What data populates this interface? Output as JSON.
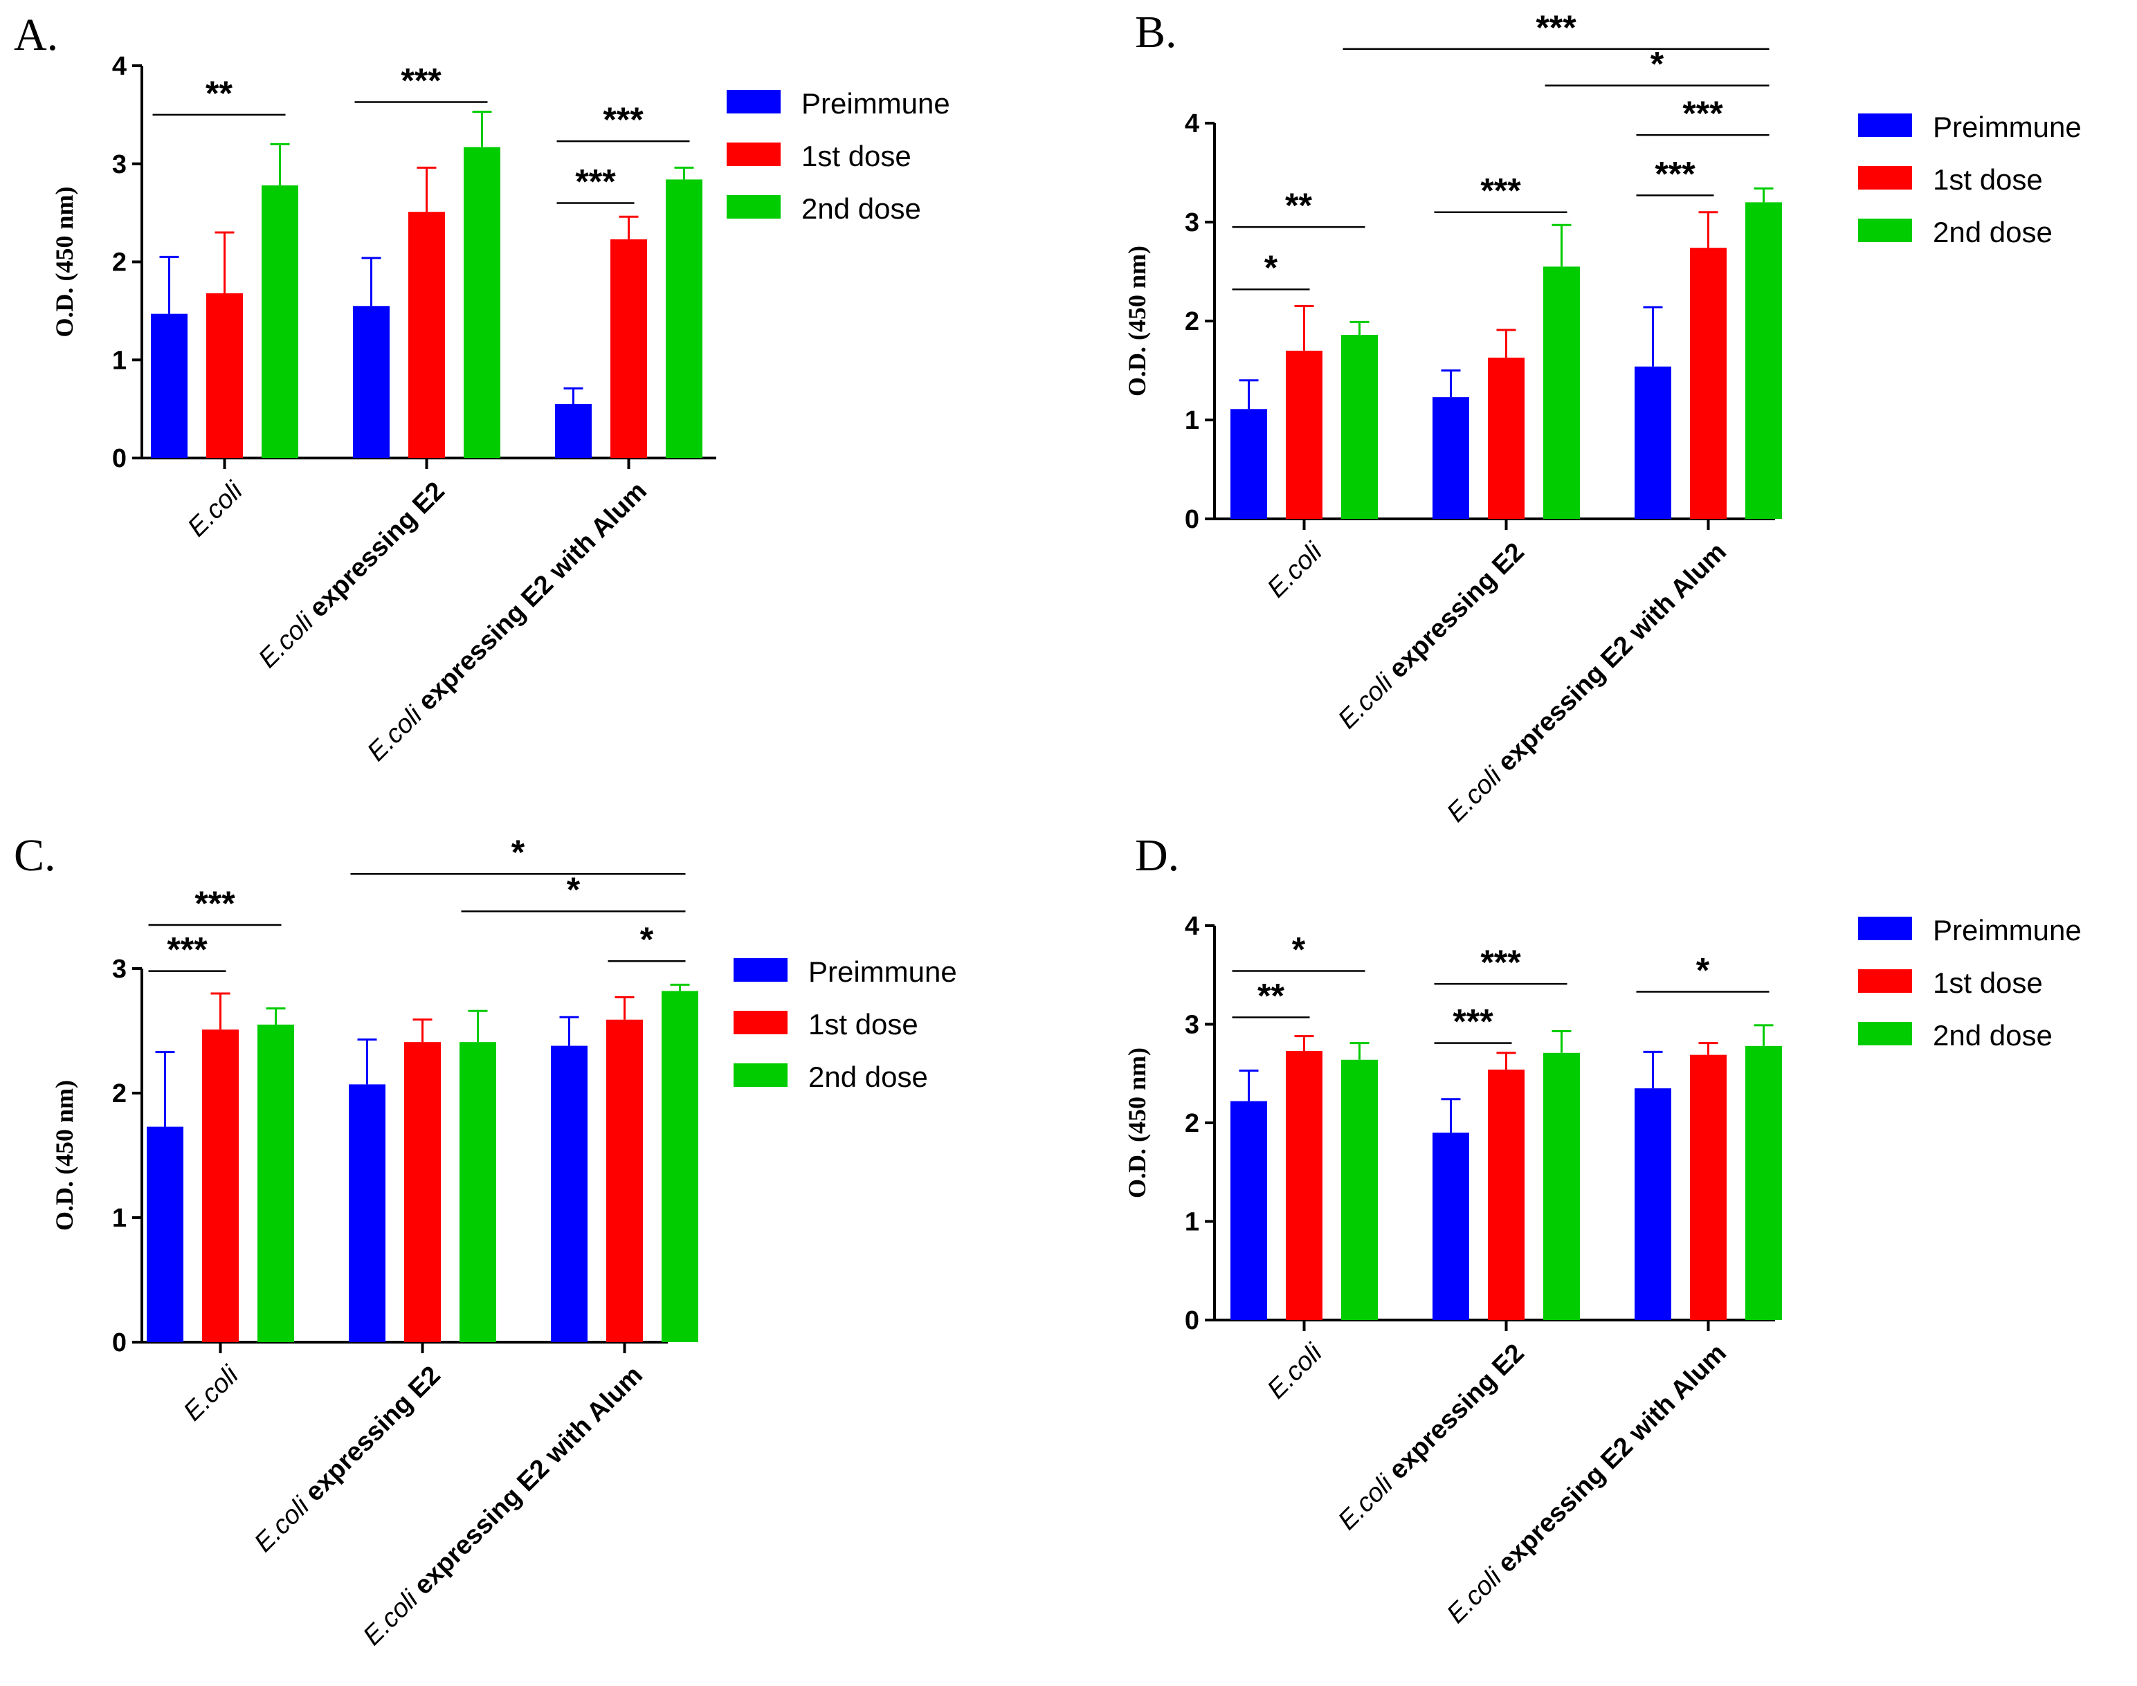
{
  "colors": {
    "Preimmune": "#0000ff",
    "1st dose": "#ff0000",
    "2nd dose": "#00cc00",
    "axis": "#000000"
  },
  "chart_data": [
    {
      "panel_label": "A.",
      "type": "bar",
      "ylabel": "O.D. (450 nm)",
      "ylim": [
        0,
        4
      ],
      "yticks": [
        0,
        1,
        2,
        3,
        4
      ],
      "categories": [
        {
          "italic": "E.coli",
          "bold": ""
        },
        {
          "italic": "E.coli",
          "bold": " expressing E2"
        },
        {
          "italic": "E.coli",
          "bold": " expressing E2 with Alum"
        }
      ],
      "series": [
        {
          "name": "Preimmune",
          "values": [
            1.47,
            1.55,
            0.55
          ],
          "errors": [
            0.58,
            0.49,
            0.16
          ]
        },
        {
          "name": "1st dose",
          "values": [
            1.68,
            2.51,
            2.23
          ],
          "errors": [
            0.62,
            0.45,
            0.23
          ]
        },
        {
          "name": "2nd dose",
          "values": [
            2.78,
            3.17,
            2.84
          ],
          "errors": [
            0.42,
            0.36,
            0.12
          ]
        }
      ],
      "legend": [
        "Preimmune",
        "1st dose",
        "2nd dose"
      ],
      "significance": [
        {
          "label": "**",
          "from": [
            0,
            0
          ],
          "to": [
            0,
            2
          ],
          "y": 3.5
        },
        {
          "label": "***",
          "from": [
            1,
            0
          ],
          "to": [
            1,
            2
          ],
          "y": 3.63
        },
        {
          "label": "***",
          "from": [
            2,
            0
          ],
          "to": [
            2,
            2
          ],
          "y": 3.23
        },
        {
          "label": "***",
          "from": [
            2,
            0
          ],
          "to": [
            2,
            1
          ],
          "y": 2.6
        }
      ]
    },
    {
      "panel_label": "B.",
      "type": "bar",
      "ylabel": "O.D. (450 nm)",
      "ylim": [
        0,
        4
      ],
      "yticks": [
        0,
        1,
        2,
        3,
        4
      ],
      "categories": [
        {
          "italic": "E.coli",
          "bold": ""
        },
        {
          "italic": "E.coli",
          "bold": " expressing E2"
        },
        {
          "italic": "E.coli",
          "bold": " expressing E2 with Alum"
        }
      ],
      "series": [
        {
          "name": "Preimmune",
          "values": [
            1.11,
            1.23,
            1.54
          ],
          "errors": [
            0.29,
            0.27,
            0.6
          ]
        },
        {
          "name": "1st dose",
          "values": [
            1.7,
            1.63,
            2.74
          ],
          "errors": [
            0.45,
            0.28,
            0.36
          ]
        },
        {
          "name": "2nd dose",
          "values": [
            1.86,
            2.55,
            3.2
          ],
          "errors": [
            0.13,
            0.42,
            0.14
          ]
        }
      ],
      "legend": [
        "Preimmune",
        "1st dose",
        "2nd dose"
      ],
      "significance": [
        {
          "label": "***",
          "from": [
            0,
            2
          ],
          "to": [
            2,
            2
          ],
          "y": 4.75
        },
        {
          "label": "*",
          "from": [
            1,
            2
          ],
          "to": [
            2,
            2
          ],
          "y": 4.38
        },
        {
          "label": "***",
          "from": [
            2,
            0
          ],
          "to": [
            2,
            2
          ],
          "y": 3.88
        },
        {
          "label": "***",
          "from": [
            2,
            0
          ],
          "to": [
            2,
            1
          ],
          "y": 3.27
        },
        {
          "label": "***",
          "from": [
            1,
            0
          ],
          "to": [
            1,
            2
          ],
          "y": 3.1
        },
        {
          "label": "**",
          "from": [
            0,
            0
          ],
          "to": [
            0,
            2
          ],
          "y": 2.95
        },
        {
          "label": "*",
          "from": [
            0,
            0
          ],
          "to": [
            0,
            1
          ],
          "y": 2.32
        }
      ]
    },
    {
      "panel_label": "C.",
      "type": "bar",
      "ylabel": "O.D. (450 nm)",
      "ylim": [
        0,
        3
      ],
      "yticks": [
        0,
        1,
        2,
        3
      ],
      "categories": [
        {
          "italic": "E.coli",
          "bold": ""
        },
        {
          "italic": "E.coli",
          "bold": " expressing E2"
        },
        {
          "italic": "E.coli",
          "bold": " expressing E2 with Alum"
        }
      ],
      "series": [
        {
          "name": "Preimmune",
          "values": [
            1.73,
            2.07,
            2.38
          ],
          "errors": [
            0.6,
            0.36,
            0.23
          ]
        },
        {
          "name": "1st dose",
          "values": [
            2.51,
            2.41,
            2.59
          ],
          "errors": [
            0.29,
            0.18,
            0.18
          ]
        },
        {
          "name": "2nd dose",
          "values": [
            2.55,
            2.41,
            2.82
          ],
          "errors": [
            0.13,
            0.25,
            0.05
          ]
        }
      ],
      "legend": [
        "Preimmune",
        "1st dose",
        "2nd dose"
      ],
      "significance": [
        {
          "label": "*",
          "from": [
            1,
            0
          ],
          "to": [
            2,
            2
          ],
          "y": 3.76
        },
        {
          "label": "*",
          "from": [
            1,
            2
          ],
          "to": [
            2,
            2
          ],
          "y": 3.46
        },
        {
          "label": "*",
          "from": [
            2,
            1
          ],
          "to": [
            2,
            2
          ],
          "y": 3.06
        },
        {
          "label": "***",
          "from": [
            0,
            0
          ],
          "to": [
            0,
            2
          ],
          "y": 3.35
        },
        {
          "label": "***",
          "from": [
            0,
            0
          ],
          "to": [
            0,
            1
          ],
          "y": 2.98
        }
      ]
    },
    {
      "panel_label": "D.",
      "type": "bar",
      "ylabel": "O.D. (450 nm)",
      "ylim": [
        0,
        4
      ],
      "yticks": [
        0,
        1,
        2,
        3,
        4
      ],
      "categories": [
        {
          "italic": "E.coli",
          "bold": ""
        },
        {
          "italic": "E.coli",
          "bold": " expressing E2"
        },
        {
          "italic": "E.coli",
          "bold": " expressing E2 with Alum"
        }
      ],
      "series": [
        {
          "name": "Preimmune",
          "values": [
            2.22,
            1.9,
            2.35
          ],
          "errors": [
            0.31,
            0.34,
            0.37
          ]
        },
        {
          "name": "1st dose",
          "values": [
            2.73,
            2.54,
            2.69
          ],
          "errors": [
            0.15,
            0.17,
            0.12
          ]
        },
        {
          "name": "2nd dose",
          "values": [
            2.64,
            2.71,
            2.78
          ],
          "errors": [
            0.17,
            0.22,
            0.21
          ]
        }
      ],
      "legend": [
        "Preimmune",
        "1st dose",
        "2nd dose"
      ],
      "significance": [
        {
          "label": "*",
          "from": [
            0,
            0
          ],
          "to": [
            0,
            2
          ],
          "y": 3.54
        },
        {
          "label": "**",
          "from": [
            0,
            0
          ],
          "to": [
            0,
            1
          ],
          "y": 3.07
        },
        {
          "label": "***",
          "from": [
            1,
            0
          ],
          "to": [
            1,
            2
          ],
          "y": 3.41
        },
        {
          "label": "***",
          "from": [
            1,
            0
          ],
          "to": [
            1,
            1
          ],
          "y": 2.81
        },
        {
          "label": "*",
          "from": [
            2,
            0
          ],
          "to": [
            2,
            2
          ],
          "y": 3.33
        }
      ]
    }
  ]
}
